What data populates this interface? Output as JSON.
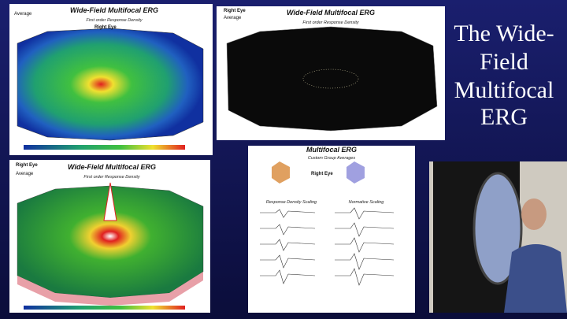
{
  "slide": {
    "title": "The Wide-Field Multifocal ERG",
    "panels": [
      {
        "title": "Wide-Field Multifocal ERG",
        "subtitle": "First order Response Density",
        "eye": "Right Eye",
        "label": "Average"
      },
      {
        "title": "Wide-Field Multifocal ERG",
        "subtitle": "First order Response Density",
        "eye": "Right Eye",
        "label": "Average"
      },
      {
        "title": "Wide-Field Multifocal ERG",
        "subtitle": "First order Response Density",
        "eye": "Right Eye",
        "label": "Average"
      },
      {
        "title": "Multifocal ERG",
        "subtitle": "Custom Group Averages",
        "eye": "Right Eye",
        "left_label": "Response Density Scaling",
        "right_label": "Normative Scaling"
      }
    ]
  }
}
